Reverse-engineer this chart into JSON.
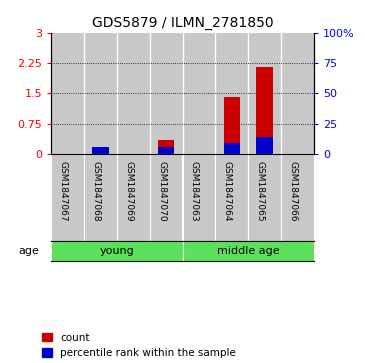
{
  "title": "GDS5879 / ILMN_2781850",
  "samples": [
    "GSM1847067",
    "GSM1847068",
    "GSM1847069",
    "GSM1847070",
    "GSM1847063",
    "GSM1847064",
    "GSM1847065",
    "GSM1847066"
  ],
  "groups": [
    {
      "label": "young",
      "start": 0,
      "end": 4,
      "color": "#5ae05a"
    },
    {
      "label": "middle age",
      "start": 4,
      "end": 8,
      "color": "#5ae05a"
    }
  ],
  "count_values": [
    0.0,
    0.18,
    0.0,
    0.35,
    0.0,
    1.42,
    2.15,
    0.0
  ],
  "percentile_values": [
    0.0,
    6.0,
    0.0,
    6.0,
    0.0,
    9.0,
    14.0,
    0.0
  ],
  "count_color": "#cc0000",
  "percentile_color": "#0000cc",
  "left_ylim": [
    0,
    3
  ],
  "right_ylim": [
    0,
    100
  ],
  "left_yticks": [
    0,
    0.75,
    1.5,
    2.25,
    3
  ],
  "right_yticks": [
    0,
    25,
    50,
    75,
    100
  ],
  "left_yticklabels": [
    "0",
    "0.75",
    "1.5",
    "2.25",
    "3"
  ],
  "right_yticklabels": [
    "0",
    "25",
    "50",
    "75",
    "100%"
  ],
  "bar_width": 0.5,
  "group_label": "age",
  "background_color": "#ffffff",
  "bar_bg_color": "#c8c8c8",
  "label_box_color": "#c8c8c8",
  "legend_count": "count",
  "legend_percentile": "percentile rank within the sample"
}
